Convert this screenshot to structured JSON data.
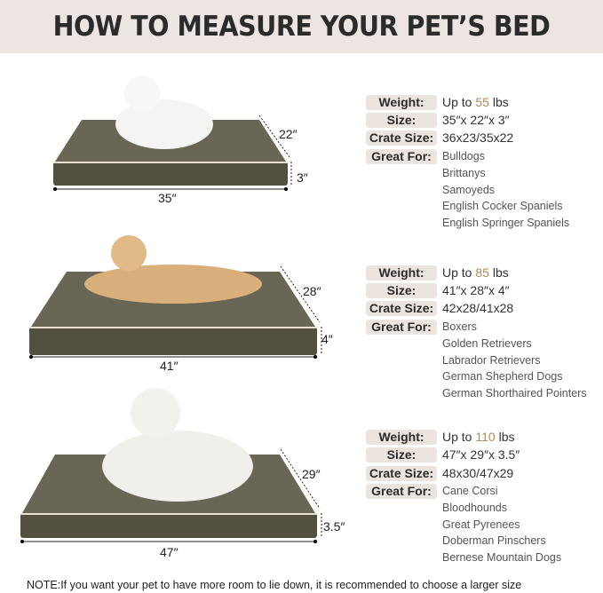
{
  "title": "HOW TO MEASURE YOUR PET’S BED",
  "colors": {
    "header_bg": "#ede5e1",
    "bed": "#5e5a4c",
    "accent_number": "#b08a5a"
  },
  "beds": [
    {
      "width": "35″",
      "depth": "22″",
      "height": "3″",
      "image": "white Samoyed-type dog lying on bed"
    },
    {
      "width": "41″",
      "depth": "28″",
      "height": "4″",
      "image": "golden retriever lying on bed"
    },
    {
      "width": "47″",
      "depth": "29″",
      "height": "3.5″",
      "image": "large white Great Pyrenees lying on bed"
    }
  ],
  "labels": {
    "weight": "Weight:",
    "size": "Size:",
    "crate": "Crate Size:",
    "great_for": "Great For:"
  },
  "specs": [
    {
      "weight_prefix": "Up to",
      "weight_num": "55",
      "weight_unit": "lbs",
      "size": "35″x 22″x 3″",
      "crate": "36x23/35x22",
      "breeds": [
        "Bulldogs",
        "Brittanys",
        "Samoyeds",
        "English Cocker Spaniels",
        "English Springer Spaniels"
      ]
    },
    {
      "weight_prefix": "Up to",
      "weight_num": "85",
      "weight_unit": "lbs",
      "size": "41″x 28″x 4″",
      "crate": "42x28/41x28",
      "breeds": [
        "Boxers",
        "Golden Retrievers",
        "Labrador Retrievers",
        "German Shepherd Dogs",
        "German Shorthaired Pointers"
      ]
    },
    {
      "weight_prefix": "Up to",
      "weight_num": "110",
      "weight_unit": "lbs",
      "size": "47″x 29″x 3.5″",
      "crate": "48x30/47x29",
      "breeds": [
        "Cane Corsi",
        "Bloodhounds",
        "Great Pyrenees",
        "Doberman Pinschers",
        "Bernese Mountain Dogs"
      ]
    }
  ],
  "note": "NOTE:If you want your pet to have more room to lie down, it is recommended to choose a larger size"
}
